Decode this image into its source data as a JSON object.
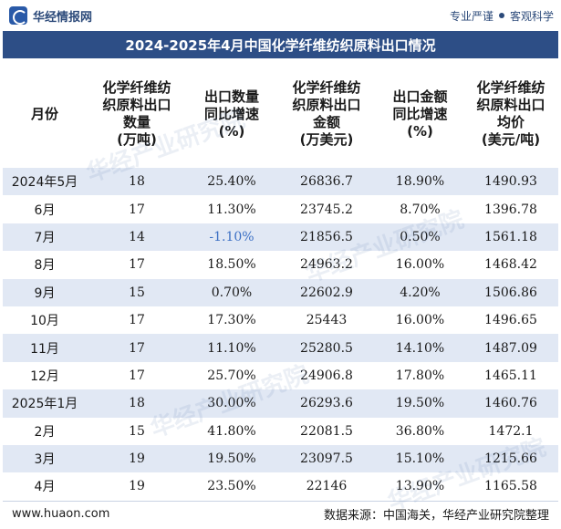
{
  "header": {
    "brand": "华经情报网",
    "tagline_left": "专业严谨",
    "tagline_right": "客观科学"
  },
  "title": "2024-2025年4月中国化学纤维纺织原料出口情况",
  "columns": [
    "月份",
    "化学纤维纺织原料出口数量(万吨)",
    "出口数量同比增速(%)",
    "化学纤维纺织原料出口金额(万美元)",
    "出口金额同比增速(%)",
    "化学纤维纺织原料出口均价(美元/吨)"
  ],
  "rows": [
    {
      "month": "2024年5月",
      "qty": "18",
      "qty_yoy": "25.40%",
      "amount": "26836.7",
      "amount_yoy": "18.90%",
      "price": "1490.93"
    },
    {
      "month": "6月",
      "qty": "17",
      "qty_yoy": "11.30%",
      "amount": "23745.2",
      "amount_yoy": "8.70%",
      "price": "1396.78"
    },
    {
      "month": "7月",
      "qty": "14",
      "qty_yoy": "-1.10%",
      "amount": "21856.5",
      "amount_yoy": "0.50%",
      "price": "1561.18"
    },
    {
      "month": "8月",
      "qty": "17",
      "qty_yoy": "18.50%",
      "amount": "24963.2",
      "amount_yoy": "16.00%",
      "price": "1468.42"
    },
    {
      "month": "9月",
      "qty": "15",
      "qty_yoy": "0.70%",
      "amount": "22602.9",
      "amount_yoy": "4.20%",
      "price": "1506.86"
    },
    {
      "month": "10月",
      "qty": "17",
      "qty_yoy": "17.30%",
      "amount": "25443",
      "amount_yoy": "16.00%",
      "price": "1496.65"
    },
    {
      "month": "11月",
      "qty": "17",
      "qty_yoy": "11.10%",
      "amount": "25280.5",
      "amount_yoy": "14.10%",
      "price": "1487.09"
    },
    {
      "month": "12月",
      "qty": "17",
      "qty_yoy": "25.70%",
      "amount": "24906.8",
      "amount_yoy": "17.80%",
      "price": "1465.11"
    },
    {
      "month": "2025年1月",
      "qty": "18",
      "qty_yoy": "30.00%",
      "amount": "26293.6",
      "amount_yoy": "19.50%",
      "price": "1460.76"
    },
    {
      "month": "2月",
      "qty": "15",
      "qty_yoy": "41.80%",
      "amount": "22081.5",
      "amount_yoy": "36.80%",
      "price": "1472.1"
    },
    {
      "month": "3月",
      "qty": "19",
      "qty_yoy": "19.50%",
      "amount": "23097.5",
      "amount_yoy": "15.10%",
      "price": "1215.66"
    },
    {
      "month": "4月",
      "qty": "19",
      "qty_yoy": "23.50%",
      "amount": "22146",
      "amount_yoy": "13.90%",
      "price": "1165.58"
    }
  ],
  "footer": {
    "url": "www.huaon.com",
    "source": "数据来源：中国海关，华经产业研究院整理"
  },
  "watermark": "华经产业研究院",
  "colors": {
    "title_bg": "#2d4e86",
    "row_band": "#e1e8f4",
    "negative": "#3b6fc4"
  }
}
